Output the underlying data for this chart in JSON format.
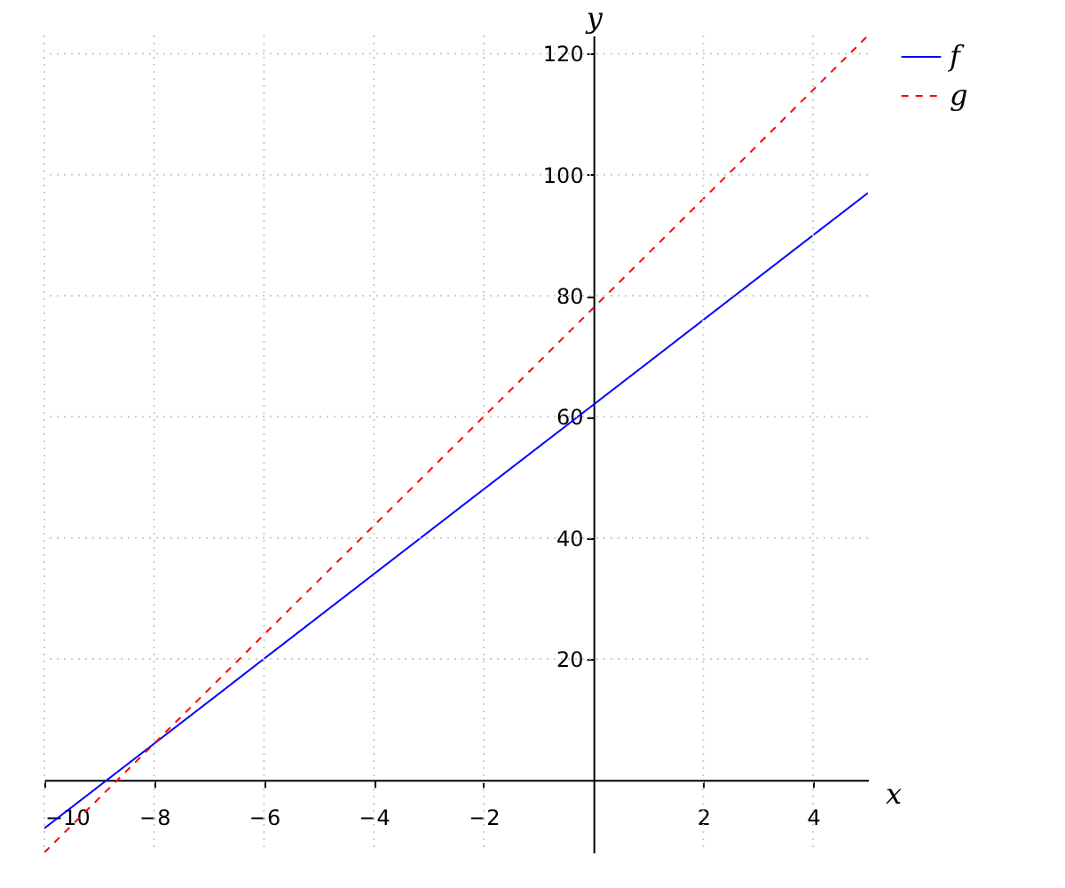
{
  "chart_data": {
    "type": "line",
    "xlabel": "x",
    "ylabel": "y",
    "x": [
      -10,
      0,
      5
    ],
    "series": [
      {
        "name": "f",
        "color": "#0000ff",
        "line_style": "solid",
        "values": [
          -8,
          62,
          97
        ]
      },
      {
        "name": "g",
        "color": "#ff0000",
        "line_style": "dashed",
        "values": [
          -12,
          78,
          123
        ]
      }
    ],
    "xlim": [
      -10,
      5
    ],
    "ylim": [
      -12,
      123
    ],
    "xticks": [
      -10,
      -8,
      -6,
      -4,
      -2,
      2,
      4
    ],
    "yticks": [
      20,
      40,
      60,
      80,
      100,
      120
    ],
    "grid": true,
    "legend": "top right"
  }
}
